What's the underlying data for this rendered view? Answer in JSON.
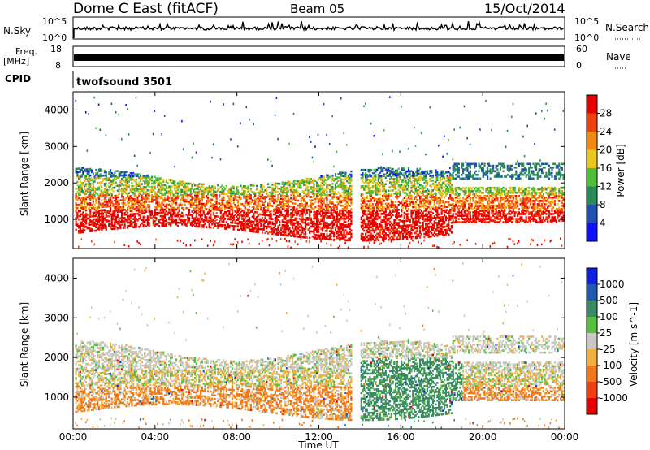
{
  "header": {
    "title": "Dome C East (fitACF)",
    "beam": "Beam 05",
    "date": "15/Oct/2014"
  },
  "noise_panel": {
    "left_label": "N.Sky",
    "right_label": "N.Search",
    "y_tick_top": "10^5",
    "y_tick_bottom": "10^0",
    "right_tick_top": "10^5",
    "right_tick_bottom": "10^0"
  },
  "freq_panel": {
    "left_label": "Freq.",
    "left_unit": "[MHz]",
    "right_label": "Nave",
    "y_tick_top": "18",
    "y_tick_bottom": "8",
    "right_tick_top": "60",
    "right_tick_bottom": "0"
  },
  "cpid_panel": {
    "label": "CPID",
    "program": "twofsound 3501"
  },
  "chart_data": [
    {
      "type": "heatmap",
      "title": "Power",
      "ylabel": "Slant Range [km]",
      "xlabel": "Time UT",
      "xlim": [
        "00:00",
        "24:00"
      ],
      "ylim": [
        200,
        4500
      ],
      "y_ticks": [
        "1000",
        "2000",
        "3000",
        "4000"
      ],
      "x_ticks": [
        "00:00",
        "04:00",
        "08:00",
        "12:00",
        "16:00",
        "20:00",
        "00:00"
      ],
      "colorbar": {
        "label": "Power [dB]",
        "ticks": [
          "4",
          "8",
          "12",
          "16",
          "20",
          "24",
          "28"
        ],
        "colors": [
          "#1010ff",
          "#1f4fb0",
          "#2a8a5a",
          "#4fbf3a",
          "#e8c81c",
          "#f08a10",
          "#f04010",
          "#e80000"
        ]
      }
    },
    {
      "type": "heatmap",
      "title": "Velocity",
      "ylabel": "Slant Range [km]",
      "xlabel": "Time UT",
      "xlim": [
        "00:00",
        "24:00"
      ],
      "ylim": [
        200,
        4500
      ],
      "y_ticks": [
        "1000",
        "2000",
        "3000",
        "4000"
      ],
      "x_ticks": [
        "00:00",
        "04:00",
        "08:00",
        "12:00",
        "16:00",
        "20:00",
        "00:00"
      ],
      "colorbar": {
        "label": "Velocity [m s^-1]",
        "ticks": [
          "1000",
          "500",
          "100",
          "25",
          "-25",
          "-100",
          "-500",
          "-1000"
        ],
        "colors": [
          "#1020e0",
          "#205ab0",
          "#3a8a64",
          "#58c040",
          "#c8c8c0",
          "#f0b040",
          "#f07818",
          "#f04010",
          "#e80000"
        ]
      }
    }
  ]
}
